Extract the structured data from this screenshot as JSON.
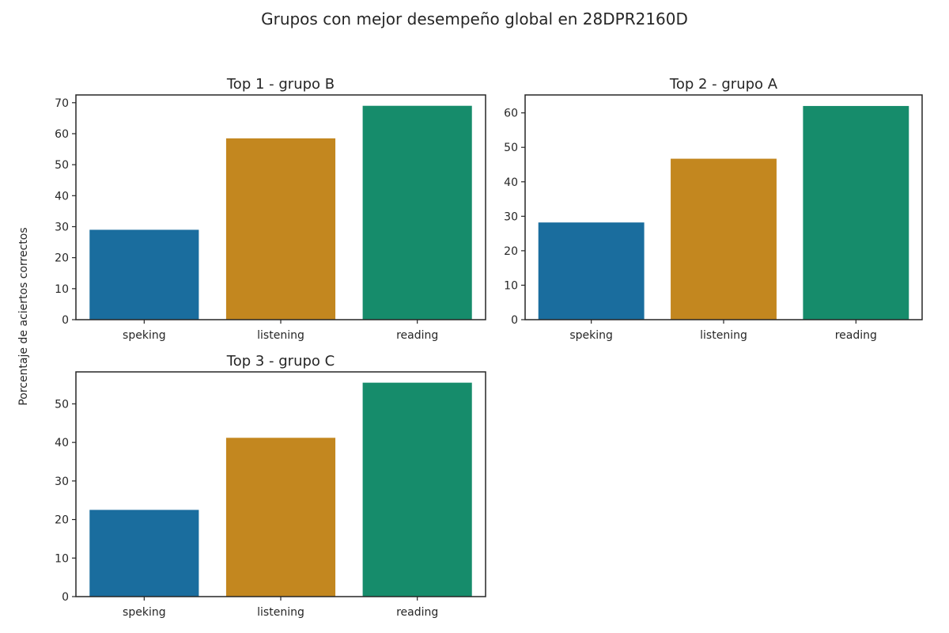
{
  "figure": {
    "title": "Grupos con mejor desempeño global en 28DPR2160D",
    "ylabel": "Porcentaje de aciertos correctos"
  },
  "colors": [
    "#1a6d9e",
    "#c3871f",
    "#168c6b"
  ],
  "chart_data": [
    {
      "type": "bar",
      "title": "Top  1 - grupo B",
      "categories": [
        "speking",
        "listening",
        "reading"
      ],
      "values": [
        29.0,
        58.5,
        69.0
      ],
      "ylim": [
        0,
        72.5
      ],
      "yticks": [
        0,
        10,
        20,
        30,
        40,
        50,
        60,
        70
      ]
    },
    {
      "type": "bar",
      "title": "Top  2 - grupo A",
      "categories": [
        "speking",
        "listening",
        "reading"
      ],
      "values": [
        28.2,
        46.7,
        62.0
      ],
      "ylim": [
        0,
        65.2
      ],
      "yticks": [
        0,
        10,
        20,
        30,
        40,
        50,
        60
      ]
    },
    {
      "type": "bar",
      "title": "Top  3 - grupo C",
      "categories": [
        "speking",
        "listening",
        "reading"
      ],
      "values": [
        22.5,
        41.2,
        55.5
      ],
      "ylim": [
        0,
        58.3
      ],
      "yticks": [
        0,
        10,
        20,
        30,
        40,
        50
      ]
    }
  ]
}
